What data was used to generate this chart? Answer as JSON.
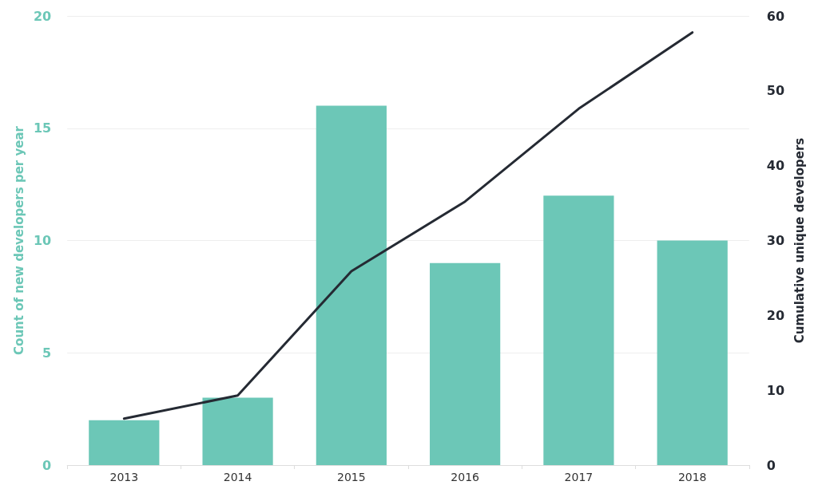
{
  "chart_data": {
    "type": "bar",
    "categories": [
      "2013",
      "2014",
      "2015",
      "2016",
      "2017",
      "2018"
    ],
    "ylabel": "Count of new developers per year",
    "y2label": "Cumulative unique developers",
    "series": [
      {
        "color": "#6cc7b7",
        "values": [
          2,
          3,
          16,
          9,
          12,
          10
        ]
      },
      {
        "type": "line",
        "axis": "y2",
        "color": "#252a33",
        "values": [
          6.2,
          9.3,
          25.9,
          35.2,
          47.6,
          57.8
        ]
      }
    ],
    "ylim": [
      0,
      20
    ],
    "yticks": [
      0,
      5,
      10,
      15,
      20
    ],
    "y2lim": [
      0,
      60
    ],
    "y2ticks": [
      0,
      10,
      20,
      30,
      40,
      50,
      60
    ],
    "grid": "y",
    "marker": "none",
    "line_style": "solid"
  }
}
